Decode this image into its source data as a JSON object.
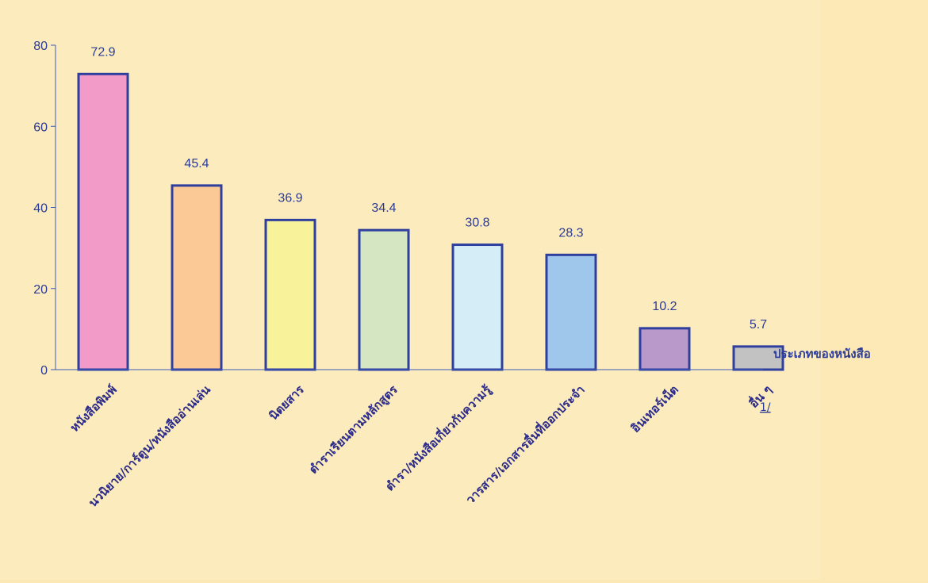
{
  "chart_data": {
    "type": "bar",
    "categories": [
      "หนังสือพิมพ์",
      "นวนิยาย/การ์ตูน/หนังสืออ่านเล่น",
      "นิตยสาร",
      "ตำราเรียนตามหลักสูตร",
      "ตำรา/หนังสือเกี่ยวกับความรู้",
      "วารสาร/เอกสารอื่นที่ออกประจำ",
      "อินเทอร์เน็ต",
      "อื่น ๆ"
    ],
    "values": [
      72.9,
      45.4,
      36.9,
      34.4,
      30.8,
      28.3,
      10.2,
      5.7
    ],
    "value_labels": [
      "72.9",
      "45.4",
      "36.9",
      "34.4",
      "30.8",
      "28.3",
      "10.2",
      "5.7"
    ],
    "colors": [
      "#f29bc8",
      "#fbc995",
      "#f8f29a",
      "#d5e6c2",
      "#d5edf7",
      "#9fc7ec",
      "#b899c9",
      "#c2c2c2"
    ],
    "bar_outline_color": "#2f3f9e",
    "yticks": [
      "0",
      "20",
      "40",
      "60",
      "80"
    ],
    "ylim": [
      0,
      80
    ],
    "xlabel": "ประเภทของหนังสือ",
    "footnote": "1/",
    "grid": false
  }
}
